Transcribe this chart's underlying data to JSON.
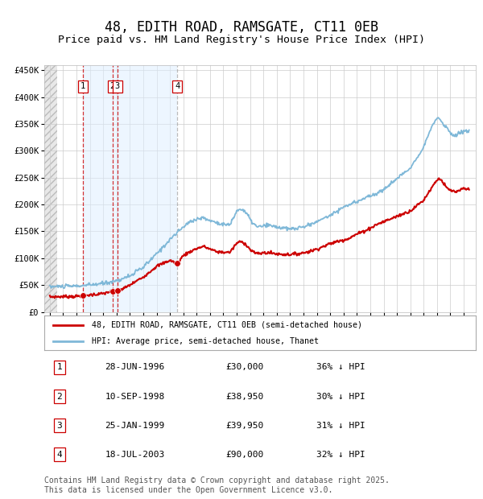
{
  "title": "48, EDITH ROAD, RAMSGATE, CT11 0EB",
  "subtitle": "Price paid vs. HM Land Registry's House Price Index (HPI)",
  "title_fontsize": 12,
  "subtitle_fontsize": 9.5,
  "hpi_color": "#7fb8d8",
  "price_color": "#cc0000",
  "marker_color": "#cc0000",
  "background_color": "#ffffff",
  "plot_bg_color": "#ffffff",
  "grid_color": "#cccccc",
  "shade_color": "#ddeeff",
  "ylim": [
    0,
    460000
  ],
  "yticks": [
    0,
    50000,
    100000,
    150000,
    200000,
    250000,
    300000,
    350000,
    400000,
    450000
  ],
  "transactions": [
    {
      "label": "1",
      "date_num": 1996.49,
      "price": 30000,
      "date_str": "28-JUN-1996",
      "price_str": "£30,000",
      "pct_str": "36% ↓ HPI"
    },
    {
      "label": "2",
      "date_num": 1998.69,
      "price": 38950,
      "date_str": "10-SEP-1998",
      "price_str": "£38,950",
      "pct_str": "30% ↓ HPI"
    },
    {
      "label": "3",
      "date_num": 1999.07,
      "price": 39950,
      "date_str": "25-JAN-1999",
      "price_str": "£39,950",
      "pct_str": "31% ↓ HPI"
    },
    {
      "label": "4",
      "date_num": 2003.54,
      "price": 90000,
      "date_str": "18-JUL-2003",
      "price_str": "£90,000",
      "pct_str": "32% ↓ HPI"
    }
  ],
  "legend_label_price": "48, EDITH ROAD, RAMSGATE, CT11 0EB (semi-detached house)",
  "legend_label_hpi": "HPI: Average price, semi-detached house, Thanet",
  "footer": "Contains HM Land Registry data © Crown copyright and database right 2025.\nThis data is licensed under the Open Government Licence v3.0.",
  "footer_fontsize": 7,
  "xlim_left": 1993.6,
  "xlim_right": 2025.9
}
